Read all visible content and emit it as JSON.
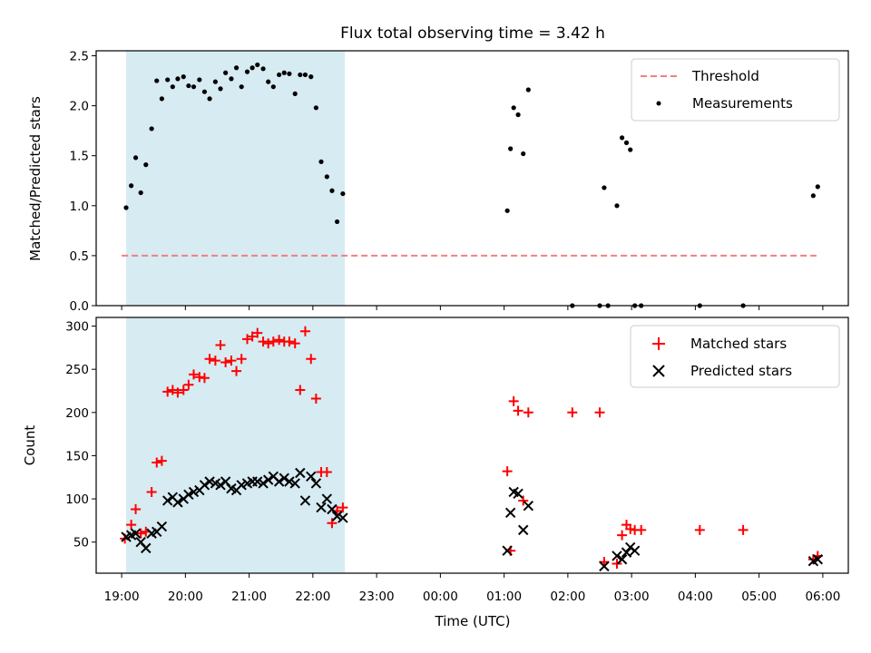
{
  "chart_data": [
    {
      "type": "scatter",
      "title": "Flux total observing time = 3.42 h",
      "xlabel": "",
      "ylabel": "Matched/Predicted stars",
      "xlim": [
        18.6,
        30.4
      ],
      "ylim": [
        0,
        2.55
      ],
      "yticks": [
        0.0,
        0.5,
        1.0,
        1.5,
        2.0,
        2.5
      ],
      "ytick_labels": [
        "0.0",
        "0.5",
        "1.0",
        "1.5",
        "2.0",
        "2.5"
      ],
      "shaded_interval": [
        19.07,
        22.5
      ],
      "threshold": {
        "name": "Threshold",
        "value": 0.5,
        "x_range": [
          19.0,
          29.9
        ],
        "color": "#f08080"
      },
      "legend": [
        "Threshold",
        "Measurements"
      ],
      "legend_position": "top-right",
      "series": [
        {
          "name": "Measurements",
          "color": "#000000",
          "marker": "dot",
          "x": [
            19.07,
            19.15,
            19.22,
            19.3,
            19.38,
            19.47,
            19.55,
            19.63,
            19.72,
            19.8,
            19.88,
            19.97,
            20.05,
            20.13,
            20.22,
            20.3,
            20.38,
            20.47,
            20.55,
            20.63,
            20.72,
            20.8,
            20.88,
            20.97,
            21.05,
            21.13,
            21.22,
            21.3,
            21.38,
            21.47,
            21.55,
            21.63,
            21.72,
            21.8,
            21.88,
            21.97,
            22.05,
            22.13,
            22.22,
            22.3,
            22.38,
            22.47,
            25.05,
            25.1,
            25.15,
            25.22,
            25.3,
            25.38,
            26.07,
            26.5,
            26.57,
            26.63,
            26.77,
            26.85,
            26.92,
            26.98,
            27.05,
            27.15,
            28.07,
            28.75,
            29.85,
            29.92
          ],
          "y": [
            0.98,
            1.2,
            1.48,
            1.13,
            1.41,
            1.77,
            2.25,
            2.07,
            2.26,
            2.19,
            2.27,
            2.29,
            2.2,
            2.19,
            2.26,
            2.14,
            2.07,
            2.24,
            2.17,
            2.33,
            2.27,
            2.38,
            2.19,
            2.34,
            2.38,
            2.41,
            2.37,
            2.24,
            2.19,
            2.31,
            2.33,
            2.32,
            2.12,
            2.31,
            2.31,
            2.29,
            1.98,
            1.44,
            1.29,
            1.15,
            0.84,
            1.12,
            0.95,
            1.57,
            1.98,
            1.91,
            1.52,
            2.16,
            0.0,
            0.0,
            1.18,
            0.0,
            1.0,
            1.68,
            1.63,
            1.56,
            0.0,
            0.0,
            0.0,
            0.0,
            1.1,
            1.19
          ]
        }
      ]
    },
    {
      "type": "scatter",
      "title": "",
      "xlabel": "Time (UTC)",
      "ylabel": "Count",
      "xlim": [
        18.6,
        30.4
      ],
      "ylim": [
        14,
        310
      ],
      "xticks": [
        19,
        20,
        21,
        22,
        23,
        24,
        25,
        26,
        27,
        28,
        29,
        30
      ],
      "xtick_labels": [
        "19:00",
        "20:00",
        "21:00",
        "22:00",
        "23:00",
        "00:00",
        "01:00",
        "02:00",
        "03:00",
        "04:00",
        "05:00",
        "06:00"
      ],
      "yticks": [
        50,
        100,
        150,
        200,
        250,
        300
      ],
      "ytick_labels": [
        "50",
        "100",
        "150",
        "200",
        "250",
        "300"
      ],
      "shaded_interval": [
        19.07,
        22.5
      ],
      "legend": [
        "Matched stars",
        "Predicted stars"
      ],
      "legend_position": "top-right",
      "series": [
        {
          "name": "Matched stars",
          "color": "#ff0000",
          "marker": "plus",
          "x": [
            19.05,
            19.15,
            19.22,
            19.3,
            19.38,
            19.47,
            19.55,
            19.63,
            19.72,
            19.8,
            19.88,
            19.97,
            20.05,
            20.13,
            20.22,
            20.3,
            20.38,
            20.47,
            20.55,
            20.63,
            20.72,
            20.8,
            20.88,
            20.97,
            21.05,
            21.13,
            21.22,
            21.3,
            21.38,
            21.47,
            21.55,
            21.63,
            21.72,
            21.8,
            21.88,
            21.97,
            22.05,
            22.13,
            22.22,
            22.3,
            22.38,
            22.47,
            25.05,
            25.1,
            25.15,
            25.22,
            25.3,
            25.38,
            26.07,
            26.5,
            26.57,
            26.77,
            26.85,
            26.92,
            26.98,
            27.05,
            27.15,
            28.07,
            28.75,
            29.85,
            29.92
          ],
          "y": [
            54,
            70,
            88,
            60,
            62,
            108,
            142,
            144,
            224,
            226,
            223,
            226,
            232,
            244,
            241,
            240,
            262,
            260,
            278,
            258,
            260,
            248,
            262,
            285,
            288,
            292,
            282,
            280,
            282,
            284,
            282,
            282,
            280,
            226,
            294,
            262,
            216,
            131,
            131,
            72,
            86,
            90,
            132,
            40,
            213,
            202,
            98,
            200,
            200,
            200,
            27,
            25,
            58,
            70,
            65,
            64,
            64,
            64,
            64,
            30,
            34
          ]
        },
        {
          "name": "Predicted stars",
          "color": "#000000",
          "marker": "x",
          "x": [
            19.07,
            19.15,
            19.22,
            19.3,
            19.38,
            19.47,
            19.55,
            19.63,
            19.72,
            19.8,
            19.88,
            19.97,
            20.05,
            20.13,
            20.22,
            20.3,
            20.38,
            20.47,
            20.55,
            20.63,
            20.72,
            20.8,
            20.88,
            20.97,
            21.05,
            21.13,
            21.22,
            21.3,
            21.38,
            21.47,
            21.55,
            21.63,
            21.72,
            21.8,
            21.88,
            21.97,
            22.05,
            22.13,
            22.22,
            22.3,
            22.38,
            22.47,
            25.05,
            25.1,
            25.15,
            25.22,
            25.3,
            25.38,
            26.57,
            26.77,
            26.85,
            26.92,
            26.98,
            27.05,
            29.85,
            29.92
          ],
          "y": [
            56,
            58,
            60,
            50,
            43,
            60,
            62,
            68,
            98,
            102,
            96,
            100,
            105,
            108,
            110,
            116,
            120,
            118,
            116,
            120,
            112,
            110,
            116,
            118,
            120,
            120,
            118,
            122,
            126,
            120,
            124,
            120,
            118,
            130,
            98,
            126,
            118,
            90,
            100,
            88,
            80,
            78,
            40,
            84,
            108,
            106,
            64,
            92,
            22,
            34,
            30,
            38,
            44,
            40,
            28,
            30
          ]
        }
      ]
    }
  ]
}
